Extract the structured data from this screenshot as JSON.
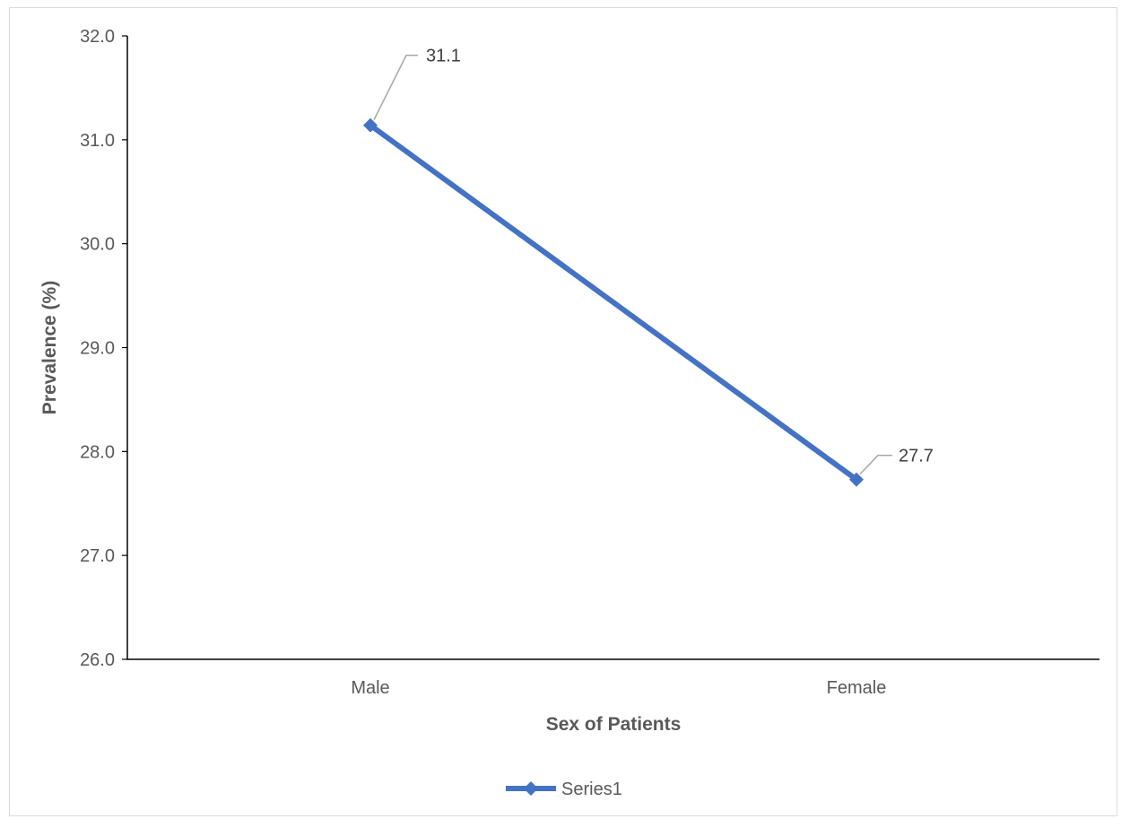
{
  "chart_data": {
    "type": "line",
    "categories": [
      "Male",
      "Female"
    ],
    "series": [
      {
        "name": "Series1",
        "values": [
          31.14,
          27.73
        ],
        "labels": [
          "31.1",
          "27.7"
        ],
        "color": "#4472c4"
      }
    ],
    "xlabel": "Sex of Patients",
    "ylabel": "Prevalence (%)",
    "ylim": [
      26.0,
      32.0
    ],
    "yticks": [
      "26.0",
      "27.0",
      "28.0",
      "29.0",
      "30.0",
      "31.0",
      "32.0"
    ],
    "grid": false,
    "legend": "bottom",
    "marker": "diamond"
  }
}
